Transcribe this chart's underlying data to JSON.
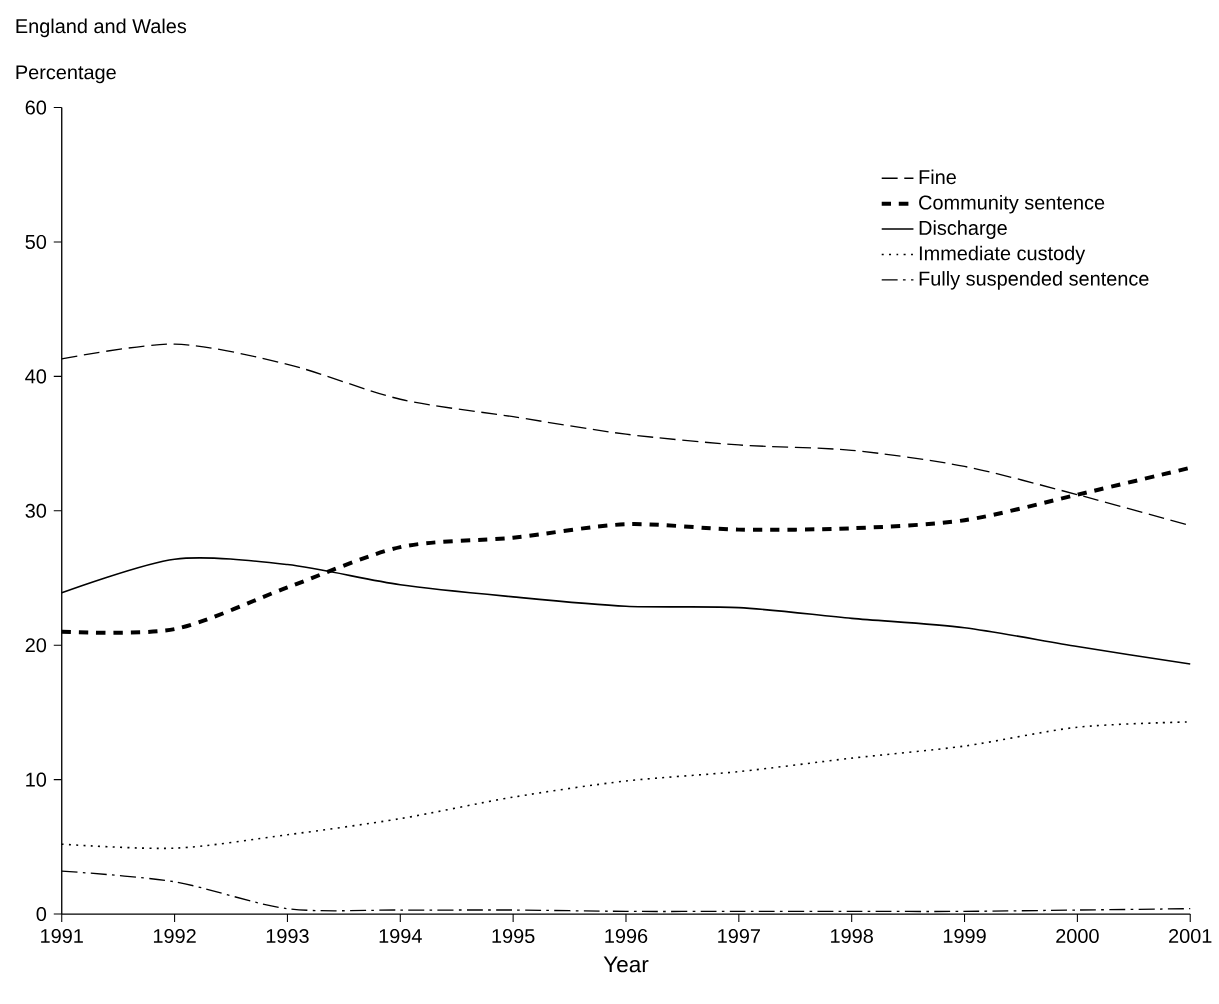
{
  "chart_data": {
    "type": "line",
    "title": "England and Wales",
    "ylabel": "Percentage",
    "xlabel": "Year",
    "x": [
      1991,
      1992,
      1993,
      1994,
      1995,
      1996,
      1997,
      1998,
      1999,
      2000,
      2001
    ],
    "xlim": [
      1991,
      2001
    ],
    "xticks": [
      1991,
      1992,
      1993,
      1994,
      1995,
      1996,
      1997,
      1998,
      1999,
      2000,
      2001
    ],
    "ylim": [
      0,
      60
    ],
    "yticks": [
      0,
      10,
      20,
      30,
      40,
      50,
      60
    ],
    "grid": false,
    "legend": "top right",
    "marker": "none",
    "series": [
      {
        "name": "Fine",
        "color": "#000000",
        "line_style": "dashed",
        "values": [
          41.3,
          42.4,
          40.9,
          38.3,
          37.0,
          35.7,
          34.9,
          34.5,
          33.3,
          31.2,
          28.9
        ]
      },
      {
        "name": "Community sentence",
        "color": "#000000",
        "line_style": "thick dashed",
        "values": [
          21.0,
          21.2,
          24.3,
          27.3,
          28.0,
          29.0,
          28.6,
          28.7,
          29.3,
          31.2,
          33.2
        ]
      },
      {
        "name": "Discharge",
        "color": "#000000",
        "line_style": "solid",
        "values": [
          23.9,
          26.4,
          26.0,
          24.5,
          23.6,
          22.9,
          22.8,
          22.0,
          21.3,
          19.9,
          18.6
        ]
      },
      {
        "name": "Immediate custody",
        "color": "#000000",
        "line_style": "dotted",
        "values": [
          5.2,
          4.9,
          5.9,
          7.1,
          8.7,
          9.9,
          10.6,
          11.6,
          12.5,
          13.9,
          14.3
        ]
      },
      {
        "name": "Fully suspended sentence",
        "color": "#000000",
        "line_style": "dashdot",
        "values": [
          3.2,
          2.4,
          0.4,
          0.3,
          0.3,
          0.2,
          0.2,
          0.2,
          0.2,
          0.3,
          0.4
        ]
      }
    ]
  }
}
